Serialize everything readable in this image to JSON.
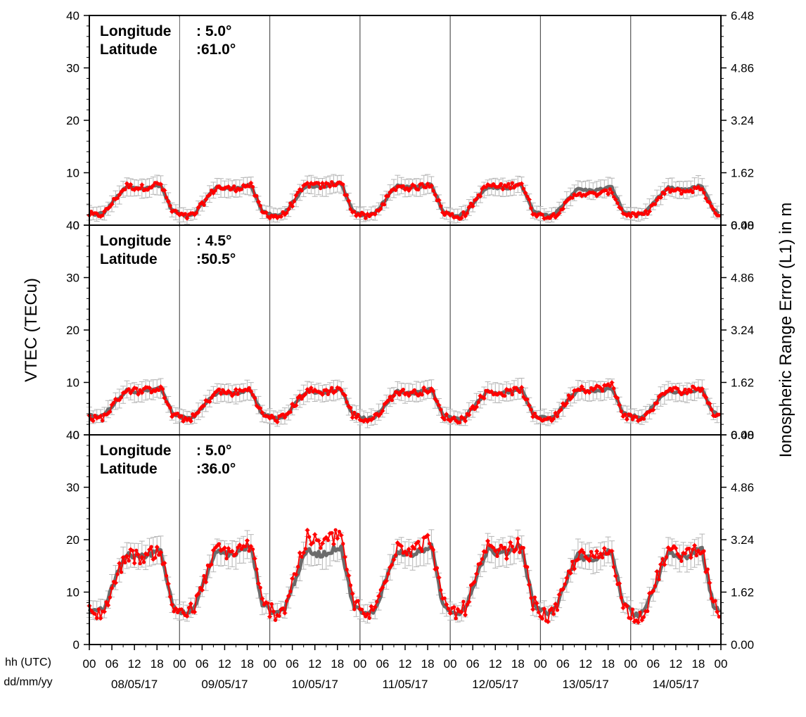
{
  "chart_data": {
    "type": "line",
    "ylabel": "VTEC (TECu)",
    "ylabel_right": "Ionospheric Range Error (L1) in m",
    "ylim": [
      0,
      40
    ],
    "yticks": [
      0,
      10,
      20,
      30,
      40
    ],
    "yticks_right": [
      "0.00",
      "1.62",
      "3.24",
      "4.86",
      "6.48"
    ],
    "x_row1_label": "hh (UTC)",
    "x_row2_label": "dd/mm/yy",
    "hour_ticks": [
      "00",
      "06",
      "12",
      "18"
    ],
    "final_hour_tick": "00",
    "days": [
      "08/05/17",
      "09/05/17",
      "10/05/17",
      "11/05/17",
      "12/05/17",
      "13/05/17",
      "14/05/17"
    ],
    "grid": false,
    "day_separators": true,
    "series_style": {
      "model": {
        "color": "#6b6b6b",
        "error_color": "#b5b5b5"
      },
      "observed": {
        "color": "#ff0000"
      }
    },
    "panels": [
      {
        "longitude_label": "Longitude",
        "longitude_value": ":  5.0°",
        "latitude_label": "Latitude",
        "latitude_value": ":61.0°",
        "days": [
          {
            "night": 2.0,
            "peak": 7.6,
            "obs_night": 1.8,
            "obs_peak": 7.8
          },
          {
            "night": 1.8,
            "peak": 7.6,
            "obs_night": 1.6,
            "obs_peak": 7.6
          },
          {
            "night": 1.8,
            "peak": 8.0,
            "obs_night": 1.6,
            "obs_peak": 8.2
          },
          {
            "night": 1.8,
            "peak": 7.8,
            "obs_night": 1.6,
            "obs_peak": 7.8
          },
          {
            "night": 1.8,
            "peak": 7.6,
            "obs_night": 1.6,
            "obs_peak": 8.0
          },
          {
            "night": 1.8,
            "peak": 7.2,
            "obs_night": 1.6,
            "obs_peak": 6.4
          },
          {
            "night": 2.0,
            "peak": 7.4,
            "obs_night": 1.8,
            "obs_peak": 7.0
          }
        ]
      },
      {
        "longitude_label": "Longitude",
        "longitude_value": ":  4.5°",
        "latitude_label": "Latitude",
        "latitude_value": ":50.5°",
        "days": [
          {
            "night": 3.4,
            "peak": 8.8,
            "obs_night": 3.0,
            "obs_peak": 9.0
          },
          {
            "night": 3.2,
            "peak": 8.4,
            "obs_night": 3.0,
            "obs_peak": 8.6
          },
          {
            "night": 3.2,
            "peak": 8.6,
            "obs_night": 3.0,
            "obs_peak": 8.8
          },
          {
            "night": 3.0,
            "peak": 8.6,
            "obs_night": 2.8,
            "obs_peak": 8.6
          },
          {
            "night": 3.0,
            "peak": 8.6,
            "obs_night": 2.8,
            "obs_peak": 8.6
          },
          {
            "night": 3.2,
            "peak": 8.8,
            "obs_night": 3.0,
            "obs_peak": 9.4
          },
          {
            "night": 3.4,
            "peak": 8.6,
            "obs_night": 3.0,
            "obs_peak": 9.0
          }
        ]
      },
      {
        "longitude_label": "Longitude",
        "longitude_value": ":  5.0°",
        "latitude_label": "Latitude",
        "latitude_value": ":36.0°",
        "days": [
          {
            "night": 6.0,
            "peak": 18.0,
            "obs_night": 5.6,
            "obs_peak": 18.0
          },
          {
            "night": 6.0,
            "peak": 18.6,
            "obs_night": 6.0,
            "obs_peak": 19.0
          },
          {
            "night": 6.0,
            "peak": 18.6,
            "obs_night": 6.0,
            "obs_peak": 21.0
          },
          {
            "night": 5.6,
            "peak": 18.6,
            "obs_night": 5.6,
            "obs_peak": 19.8
          },
          {
            "night": 6.0,
            "peak": 18.8,
            "obs_night": 6.0,
            "obs_peak": 19.0
          },
          {
            "night": 6.0,
            "peak": 17.6,
            "obs_night": 5.4,
            "obs_peak": 17.8
          },
          {
            "night": 5.6,
            "peak": 18.0,
            "obs_night": 5.4,
            "obs_peak": 18.6
          }
        ]
      }
    ]
  }
}
